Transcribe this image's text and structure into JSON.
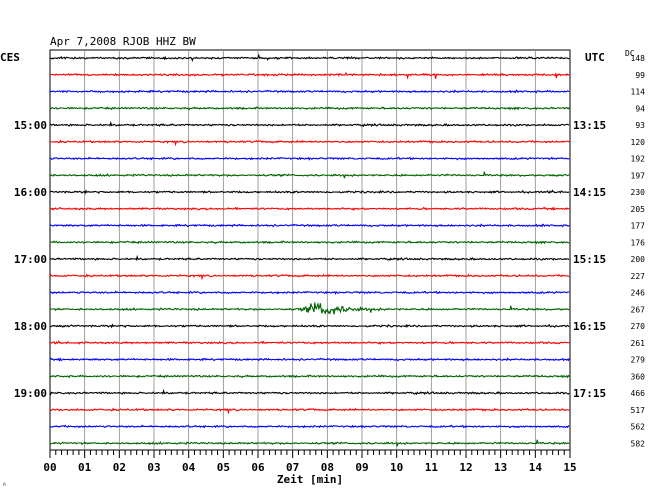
{
  "header": {
    "title": "Apr 7,2008   RJOB HHZ BW",
    "left_timezone": "CES",
    "right_timezone": "UTC",
    "dc_label": "DC"
  },
  "footer": {
    "corner_mark": "ᴬ"
  },
  "colors": {
    "cycle": [
      "#000000",
      "#ff0000",
      "#0000ff",
      "#006400"
    ],
    "grid": "#888888"
  },
  "chart_data": {
    "type": "line",
    "title": "Apr 7,2008   RJOB HHZ BW",
    "xlabel": "Zeit [min]",
    "xlim": [
      0,
      15
    ],
    "x_ticks": [
      "00",
      "01",
      "02",
      "03",
      "04",
      "05",
      "06",
      "07",
      "08",
      "09",
      "10",
      "11",
      "12",
      "13",
      "14",
      "15"
    ],
    "grid": true,
    "series_color_cycle": [
      "black",
      "red",
      "blue",
      "green"
    ],
    "left_hour_labels": [
      {
        "row": 4,
        "text": "15:00"
      },
      {
        "row": 8,
        "text": "16:00"
      },
      {
        "row": 12,
        "text": "17:00"
      },
      {
        "row": 16,
        "text": "18:00"
      },
      {
        "row": 20,
        "text": "19:00"
      }
    ],
    "right_hour_labels": [
      {
        "row": 4,
        "text": "13:15"
      },
      {
        "row": 8,
        "text": "14:15"
      },
      {
        "row": 12,
        "text": "15:15"
      },
      {
        "row": 16,
        "text": "16:15"
      },
      {
        "row": 20,
        "text": "17:15"
      }
    ],
    "dc_offsets": [
      148,
      99,
      114,
      94,
      93,
      120,
      192,
      197,
      230,
      205,
      177,
      176,
      200,
      227,
      246,
      267,
      270,
      261,
      279,
      360,
      466,
      517,
      562,
      582
    ],
    "events": [
      {
        "row": 15,
        "minute": 7.9,
        "description": "earthquake signal, peak near 8 min"
      }
    ]
  }
}
